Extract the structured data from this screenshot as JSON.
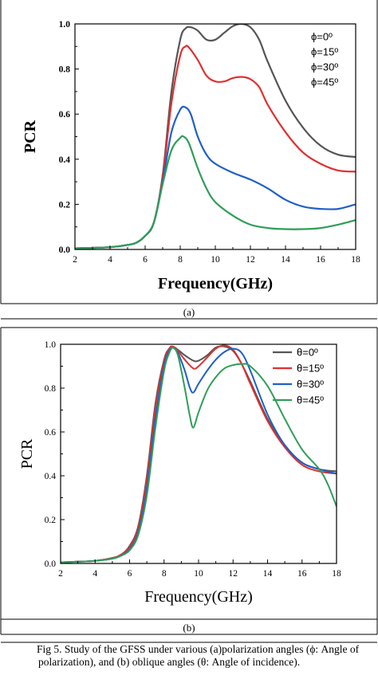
{
  "header_fragment": "",
  "panel_labels": {
    "a": "(a)",
    "b": "(b)"
  },
  "caption": {
    "text": "Fig 5.              Study of the GFSS under various (a)polarization angles (ϕ: Angle of polarization), and (b) oblique angles (θ: Angle of incidence)."
  },
  "chart_data": [
    {
      "type": "line",
      "panel": "a",
      "xlabel": "Frequency(GHz)",
      "ylabel": "PCR",
      "xlim": [
        2,
        18
      ],
      "ylim": [
        0.0,
        1.0
      ],
      "xticks": [
        2,
        4,
        6,
        8,
        10,
        12,
        14,
        16,
        18
      ],
      "yticks": [
        "0.0",
        "0.2",
        "0.4",
        "0.6",
        "0.8",
        "1.0"
      ],
      "legend_position": "top-right",
      "grid": false,
      "series": [
        {
          "name": "ϕ=0º",
          "color": "#555555",
          "x": [
            2,
            3,
            4,
            5,
            5.5,
            6,
            6.5,
            7,
            7.5,
            8,
            8.3,
            8.6,
            9,
            9.5,
            10,
            10.5,
            11,
            11.5,
            12,
            12.5,
            13,
            14,
            15,
            16,
            17,
            18
          ],
          "y": [
            0.005,
            0.007,
            0.01,
            0.02,
            0.03,
            0.06,
            0.12,
            0.33,
            0.7,
            0.93,
            0.98,
            0.985,
            0.97,
            0.93,
            0.93,
            0.96,
            0.99,
            1.0,
            0.985,
            0.93,
            0.83,
            0.66,
            0.54,
            0.46,
            0.42,
            0.41
          ]
        },
        {
          "name": "ϕ=15º",
          "color": "#e03030",
          "x": [
            2,
            3,
            4,
            5,
            5.5,
            6,
            6.5,
            7,
            7.5,
            8,
            8.3,
            8.5,
            9,
            9.5,
            10,
            10.5,
            11,
            11.5,
            12,
            12.5,
            13,
            14,
            15,
            16,
            17,
            18
          ],
          "y": [
            0.005,
            0.007,
            0.01,
            0.02,
            0.03,
            0.06,
            0.12,
            0.32,
            0.65,
            0.86,
            0.9,
            0.895,
            0.84,
            0.77,
            0.745,
            0.745,
            0.76,
            0.765,
            0.755,
            0.72,
            0.64,
            0.52,
            0.43,
            0.38,
            0.35,
            0.345
          ]
        },
        {
          "name": "ϕ=30º",
          "color": "#1f5fc8",
          "x": [
            2,
            3,
            4,
            5,
            5.5,
            6,
            6.5,
            7,
            7.5,
            8,
            8.3,
            8.6,
            9,
            9.5,
            10,
            11,
            12,
            13,
            14,
            15,
            16,
            17,
            18
          ],
          "y": [
            0.005,
            0.007,
            0.01,
            0.02,
            0.03,
            0.06,
            0.12,
            0.3,
            0.52,
            0.62,
            0.63,
            0.6,
            0.5,
            0.42,
            0.38,
            0.34,
            0.31,
            0.27,
            0.22,
            0.19,
            0.18,
            0.18,
            0.2
          ]
        },
        {
          "name": "ϕ=45º",
          "color": "#2e9e58",
          "x": [
            2,
            3,
            4,
            5,
            5.5,
            6,
            6.5,
            7,
            7.5,
            8,
            8.2,
            8.5,
            9,
            9.5,
            10,
            11,
            12,
            13,
            14,
            15,
            16,
            17,
            18
          ],
          "y": [
            0.005,
            0.007,
            0.01,
            0.02,
            0.03,
            0.06,
            0.12,
            0.29,
            0.44,
            0.495,
            0.5,
            0.47,
            0.36,
            0.27,
            0.21,
            0.15,
            0.11,
            0.095,
            0.09,
            0.09,
            0.095,
            0.11,
            0.13
          ]
        }
      ]
    },
    {
      "type": "line",
      "panel": "b",
      "xlabel": "Frequency(GHz)",
      "ylabel": "PCR",
      "xlim": [
        2,
        18
      ],
      "ylim": [
        0.0,
        1.0
      ],
      "xticks": [
        2,
        4,
        6,
        8,
        10,
        12,
        14,
        16,
        18
      ],
      "yticks": [
        "0.0",
        "0.2",
        "0.4",
        "0.6",
        "0.8",
        "1.0"
      ],
      "legend_position": "top-right",
      "grid": false,
      "series": [
        {
          "name": "θ=0º",
          "color": "#555555",
          "x": [
            2,
            3,
            4,
            5,
            5.5,
            6,
            6.5,
            7,
            7.5,
            8,
            8.3,
            8.5,
            8.8,
            9.2,
            9.7,
            10,
            10.5,
            11,
            11.5,
            12,
            12.5,
            13,
            14,
            15,
            16,
            17,
            18
          ],
          "y": [
            0.005,
            0.008,
            0.012,
            0.025,
            0.04,
            0.08,
            0.17,
            0.4,
            0.73,
            0.93,
            0.98,
            0.99,
            0.975,
            0.95,
            0.925,
            0.925,
            0.95,
            0.985,
            0.99,
            0.97,
            0.91,
            0.83,
            0.66,
            0.54,
            0.46,
            0.43,
            0.42
          ]
        },
        {
          "name": "θ=15º",
          "color": "#e03030",
          "x": [
            2,
            3,
            4,
            5,
            5.5,
            6,
            6.5,
            7,
            7.5,
            8,
            8.3,
            8.5,
            8.8,
            9.2,
            9.7,
            10,
            10.5,
            11,
            11.5,
            12,
            12.5,
            13,
            14,
            15,
            16,
            17,
            18
          ],
          "y": [
            0.005,
            0.008,
            0.012,
            0.025,
            0.04,
            0.075,
            0.16,
            0.38,
            0.71,
            0.92,
            0.98,
            0.99,
            0.97,
            0.93,
            0.89,
            0.9,
            0.94,
            0.98,
            0.995,
            0.975,
            0.91,
            0.82,
            0.65,
            0.53,
            0.45,
            0.42,
            0.41
          ]
        },
        {
          "name": "θ=30º",
          "color": "#1f5fc8",
          "x": [
            2,
            3,
            4,
            5,
            5.5,
            6,
            6.5,
            7,
            7.5,
            8,
            8.3,
            8.5,
            8.8,
            9.2,
            9.5,
            9.7,
            10,
            10.5,
            11,
            11.5,
            12,
            12.5,
            13,
            14,
            15,
            16,
            17,
            18
          ],
          "y": [
            0.005,
            0.008,
            0.012,
            0.022,
            0.035,
            0.065,
            0.14,
            0.34,
            0.66,
            0.9,
            0.97,
            0.985,
            0.96,
            0.88,
            0.8,
            0.78,
            0.82,
            0.88,
            0.93,
            0.965,
            0.98,
            0.96,
            0.88,
            0.68,
            0.54,
            0.46,
            0.43,
            0.41
          ]
        },
        {
          "name": "θ=45º",
          "color": "#2e9e58",
          "x": [
            2,
            3,
            4,
            5,
            5.5,
            6,
            6.5,
            7,
            7.5,
            8,
            8.3,
            8.5,
            8.8,
            9.2,
            9.5,
            9.7,
            10,
            10.5,
            11,
            11.5,
            12,
            12.5,
            13,
            14,
            15,
            16,
            17,
            17.5,
            18
          ],
          "y": [
            0.005,
            0.008,
            0.012,
            0.022,
            0.035,
            0.06,
            0.13,
            0.31,
            0.62,
            0.88,
            0.96,
            0.985,
            0.95,
            0.8,
            0.67,
            0.62,
            0.69,
            0.79,
            0.85,
            0.89,
            0.905,
            0.91,
            0.9,
            0.81,
            0.66,
            0.52,
            0.43,
            0.36,
            0.26
          ]
        }
      ]
    }
  ]
}
